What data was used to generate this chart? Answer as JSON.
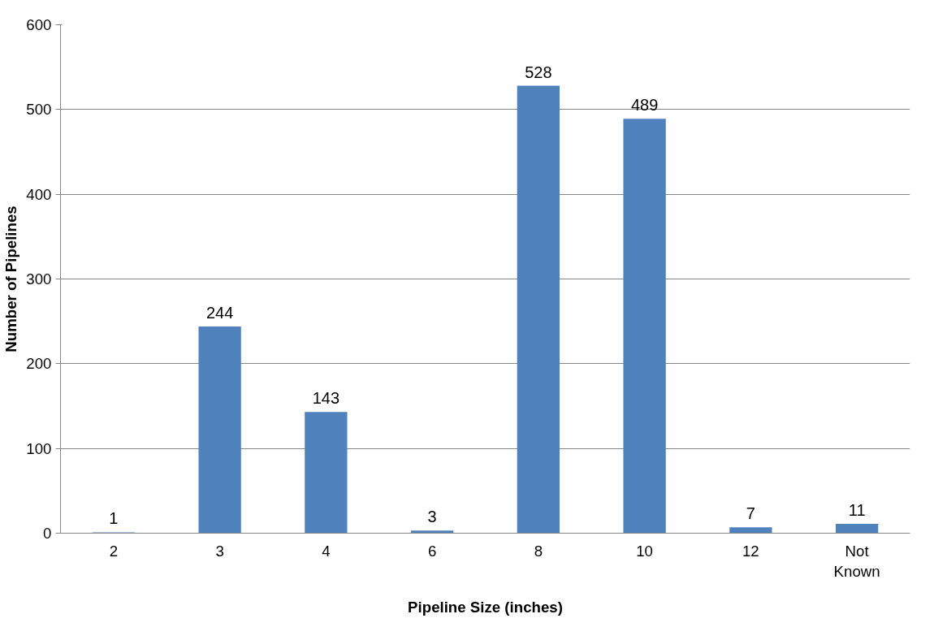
{
  "chart_data": {
    "type": "bar",
    "xlabel": "Pipeline Size (inches)",
    "ylabel": "Number of Pipelines",
    "categories": [
      "2",
      "3",
      "4",
      "6",
      "8",
      "10",
      "12",
      "Not Known"
    ],
    "values": [
      1,
      244,
      143,
      3,
      528,
      489,
      7,
      11
    ],
    "color": "#4f81bd",
    "ylim": [
      0,
      600
    ],
    "yticks": [
      0,
      100,
      200,
      300,
      400,
      500,
      600
    ],
    "grid": "y",
    "data_labels": true
  }
}
